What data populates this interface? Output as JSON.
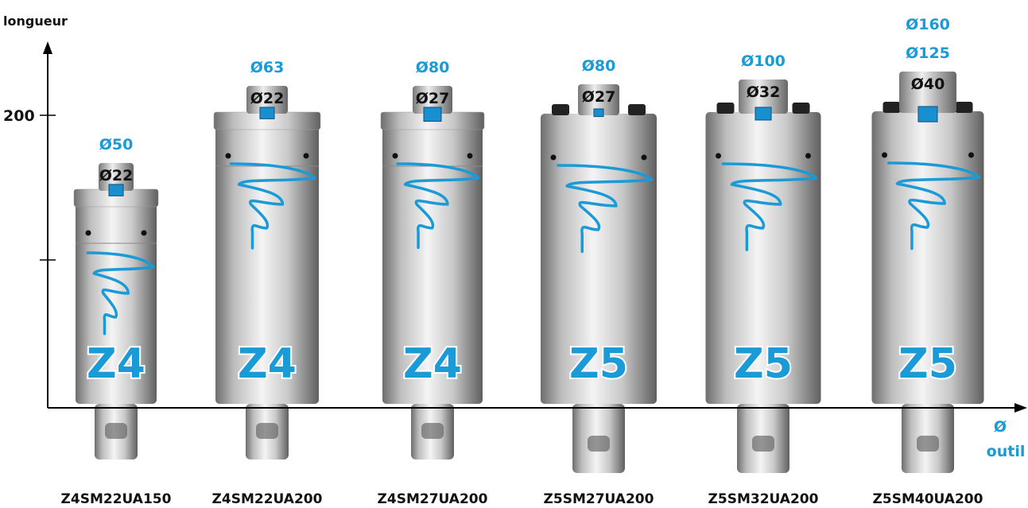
{
  "axes": {
    "y_label": "longueur",
    "x_label_line1": "Ø",
    "x_label_line2": "outil",
    "y_tick": "200"
  },
  "products": [
    {
      "name": "Z4SM22UA150",
      "badge": "Z4",
      "shaft": "Ø22",
      "diameters": [
        "Ø50"
      ]
    },
    {
      "name": "Z4SM22UA200",
      "badge": "Z4",
      "shaft": "Ø22",
      "diameters": [
        "Ø63"
      ]
    },
    {
      "name": "Z4SM27UA200",
      "badge": "Z4",
      "shaft": "Ø27",
      "diameters": [
        "Ø80"
      ]
    },
    {
      "name": "Z5SM27UA200",
      "badge": "Z5",
      "shaft": "Ø27",
      "diameters": [
        "Ø80"
      ]
    },
    {
      "name": "Z5SM32UA200",
      "badge": "Z5",
      "shaft": "Ø32",
      "diameters": [
        "Ø100"
      ]
    },
    {
      "name": "Z5SM40UA200",
      "badge": "Z5",
      "shaft": "Ø40",
      "diameters": [
        "Ø125",
        "Ø160"
      ]
    }
  ]
}
